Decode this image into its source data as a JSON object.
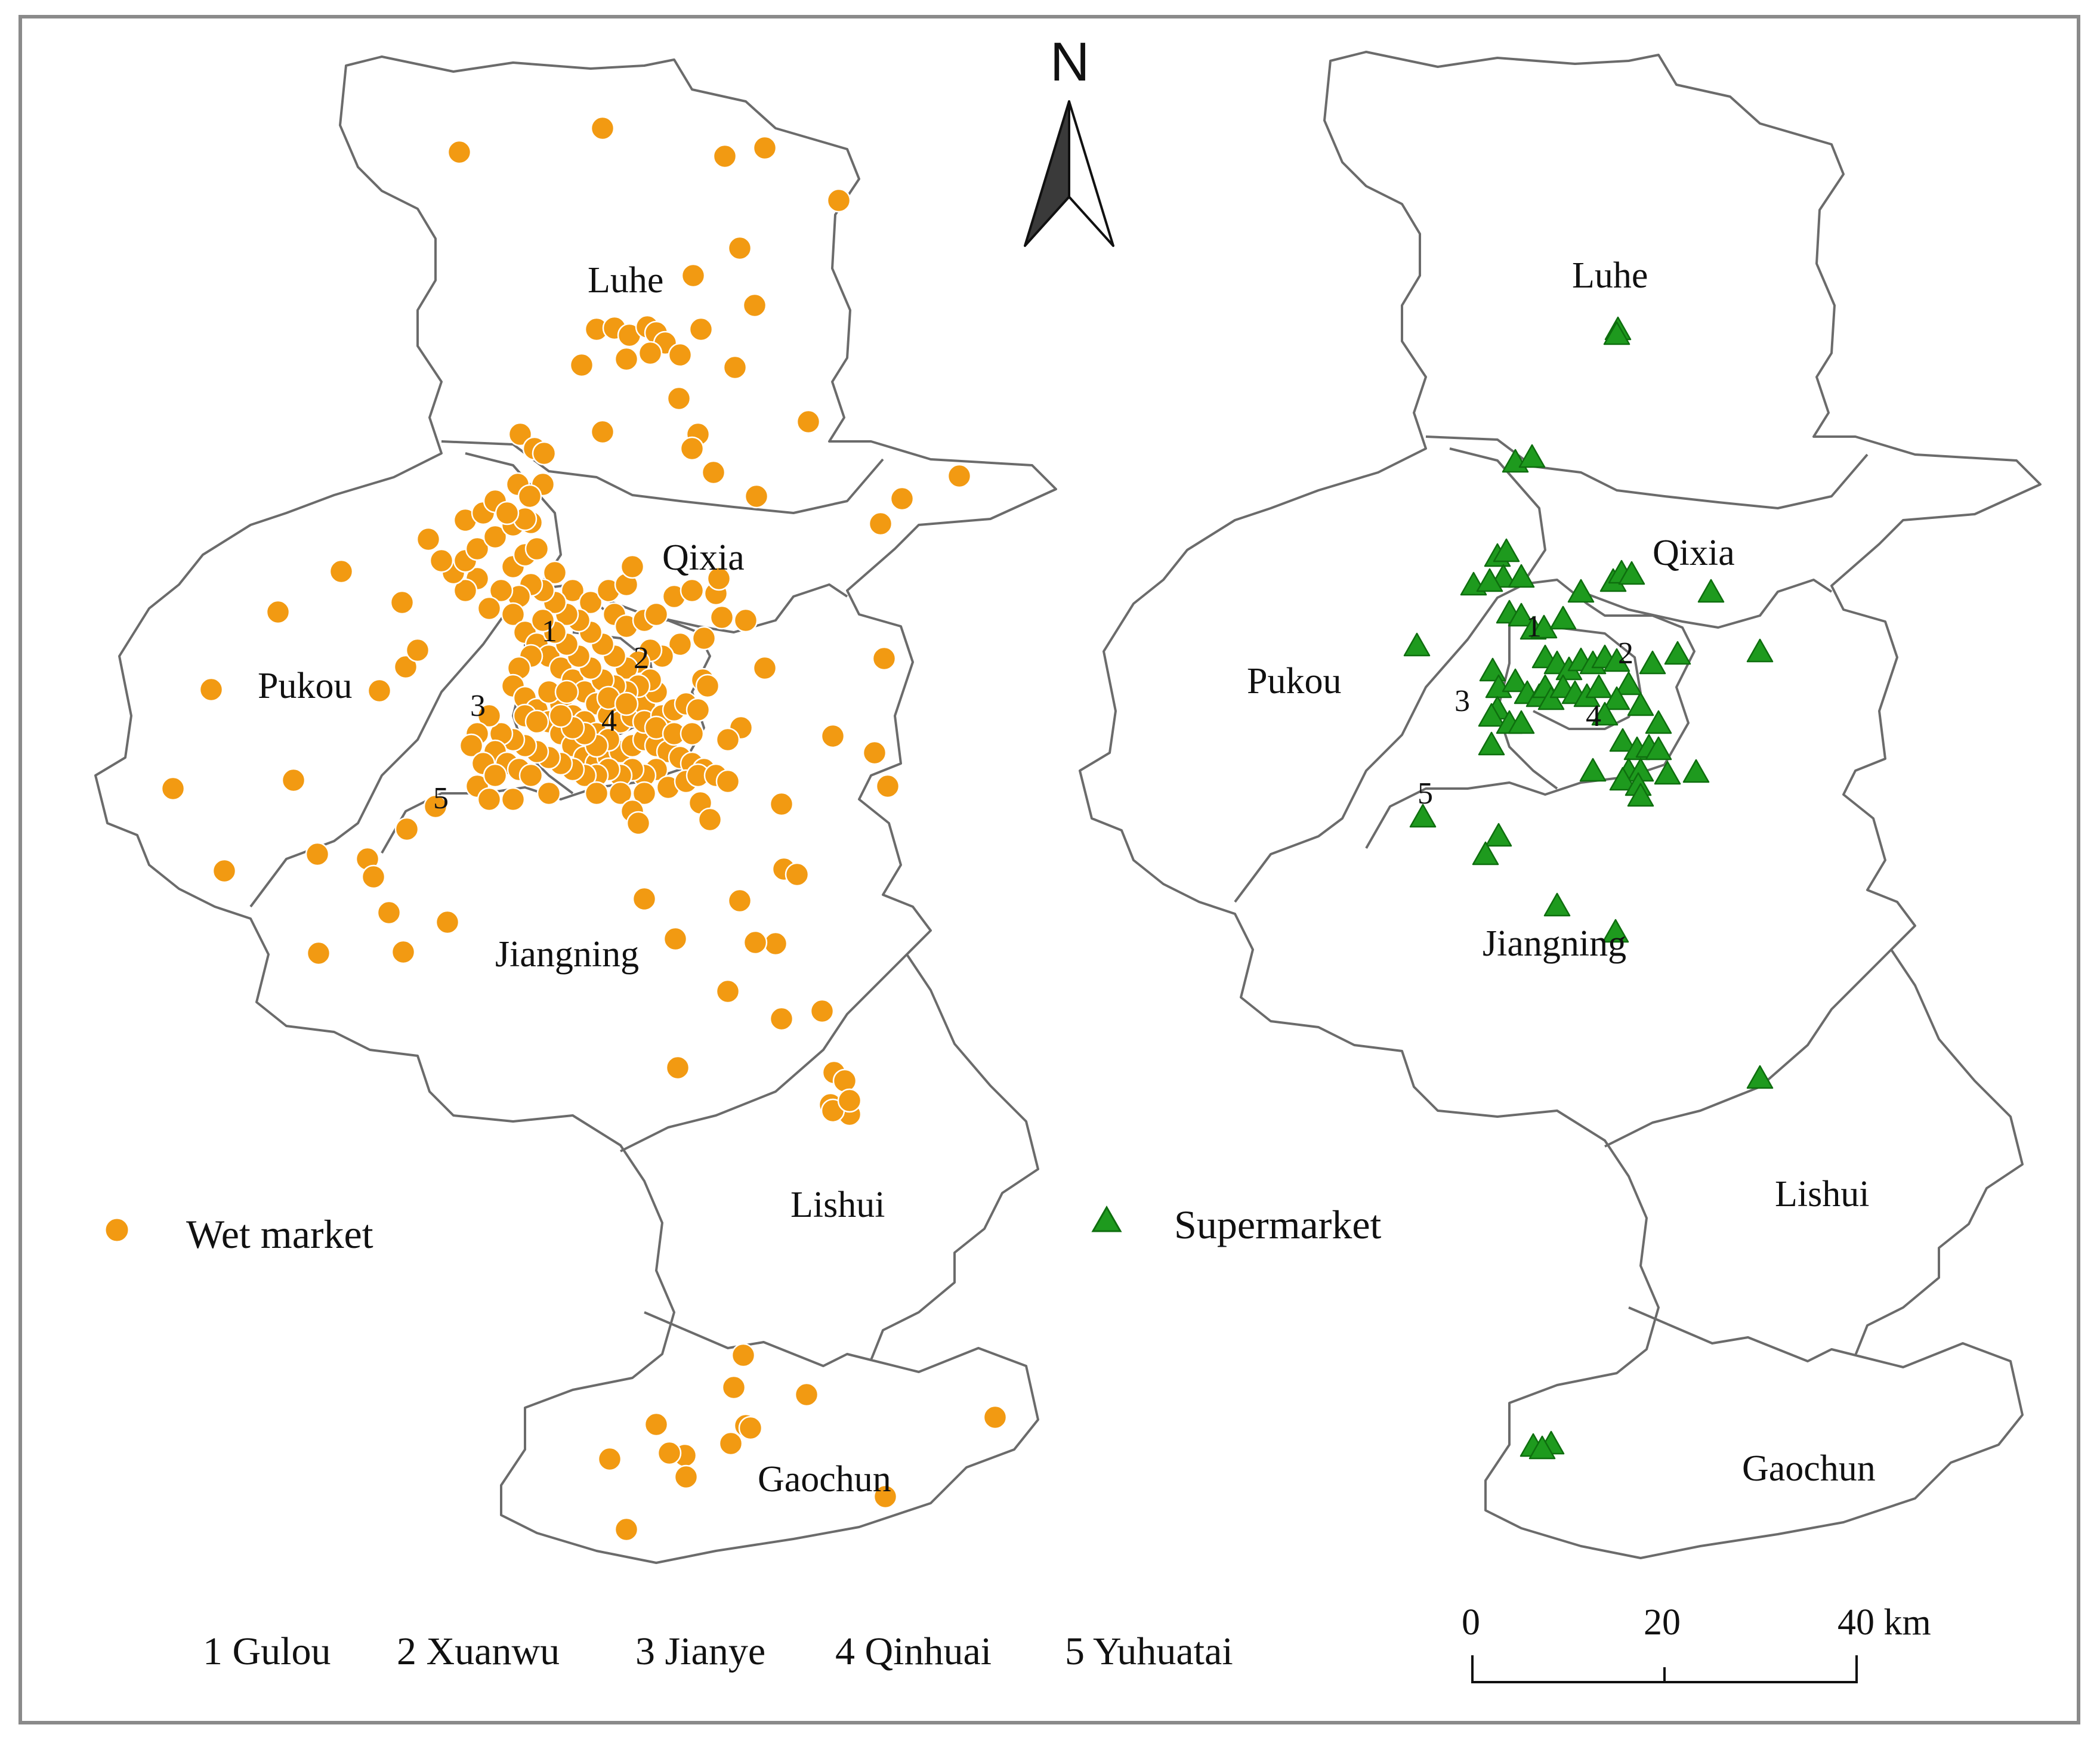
{
  "colors": {
    "wet_market": "#F29A12",
    "wet_market_edge": "#ffffff",
    "supermarket": "#1E9A1E",
    "supermarket_edge": "#0E6E0E",
    "boundary": "#6b6b6b",
    "frame": "#8a8a8a"
  },
  "north_arrow": {
    "label": "N",
    "icon": "north-arrow-icon"
  },
  "left_map": {
    "districts": {
      "luhe": "Luhe",
      "qixia": "Qixia",
      "pukou": "Pukou",
      "jiangning": "Jiangning",
      "lishui": "Lishui",
      "gaochun": "Gaochun"
    },
    "numbers": {
      "n1": "1",
      "n2": "2",
      "n3": "3",
      "n4": "4",
      "n5": "5"
    },
    "legend_label": "Wet market"
  },
  "right_map": {
    "districts": {
      "luhe": "Luhe",
      "qixia": "Qixia",
      "pukou": "Pukou",
      "jiangning": "Jiangning",
      "lishui": "Lishui",
      "gaochun": "Gaochun"
    },
    "numbers": {
      "n1": "1",
      "n2": "2",
      "n3": "3",
      "n4": "4",
      "n5": "5"
    },
    "legend_label": "Supermarket"
  },
  "district_key": [
    "1 Gulou",
    "2 Xuanwu",
    "3 Jianye",
    "4 Qinhuai",
    "5 Yuhuatai"
  ],
  "scale_bar": {
    "ticks": [
      "0",
      "20",
      "40 km"
    ]
  }
}
